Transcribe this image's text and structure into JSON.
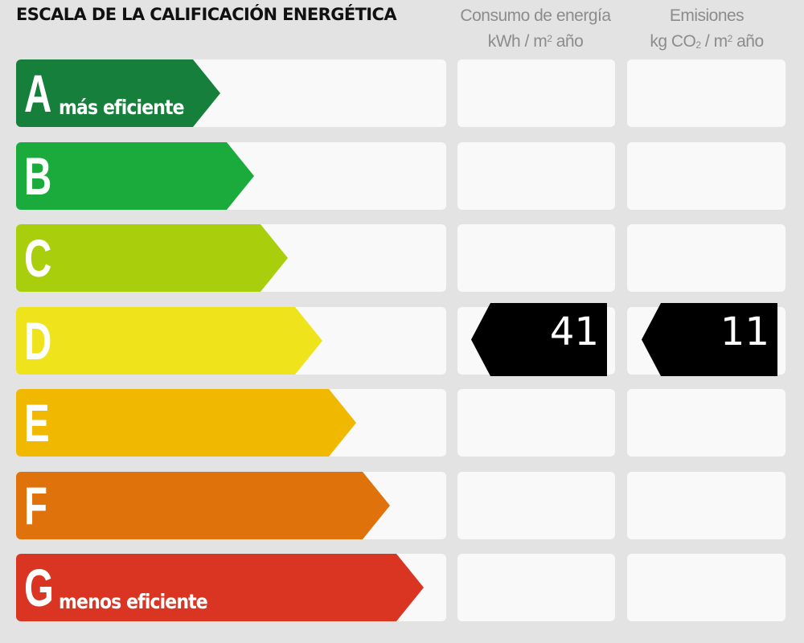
{
  "title": "ESCALA DE LA CALIFICACIÓN ENERGÉTICA",
  "columns": {
    "energy": {
      "line1": "Consumo de energía",
      "unit_pre": "kWh / m",
      "unit_sup": "2",
      "unit_post": " año"
    },
    "emissions": {
      "line1": "Emisiones",
      "unit_pre": "kg CO",
      "unit_sub": "2",
      "unit_mid": " / m",
      "unit_sup": "2",
      "unit_post": " año"
    }
  },
  "bands": [
    {
      "letter": "A",
      "sub": "más eficiente",
      "color": "#157f3b"
    },
    {
      "letter": "B",
      "sub": "",
      "color": "#1aab3c"
    },
    {
      "letter": "C",
      "sub": "",
      "color": "#a9cf0c"
    },
    {
      "letter": "D",
      "sub": "",
      "color": "#efe31b"
    },
    {
      "letter": "E",
      "sub": "",
      "color": "#f1b800"
    },
    {
      "letter": "F",
      "sub": "",
      "color": "#e0720c"
    },
    {
      "letter": "G",
      "sub": "menos eficiente",
      "color": "#da3522"
    }
  ],
  "rating": {
    "band": "D",
    "energy_value": "41",
    "emissions_value": "11"
  }
}
